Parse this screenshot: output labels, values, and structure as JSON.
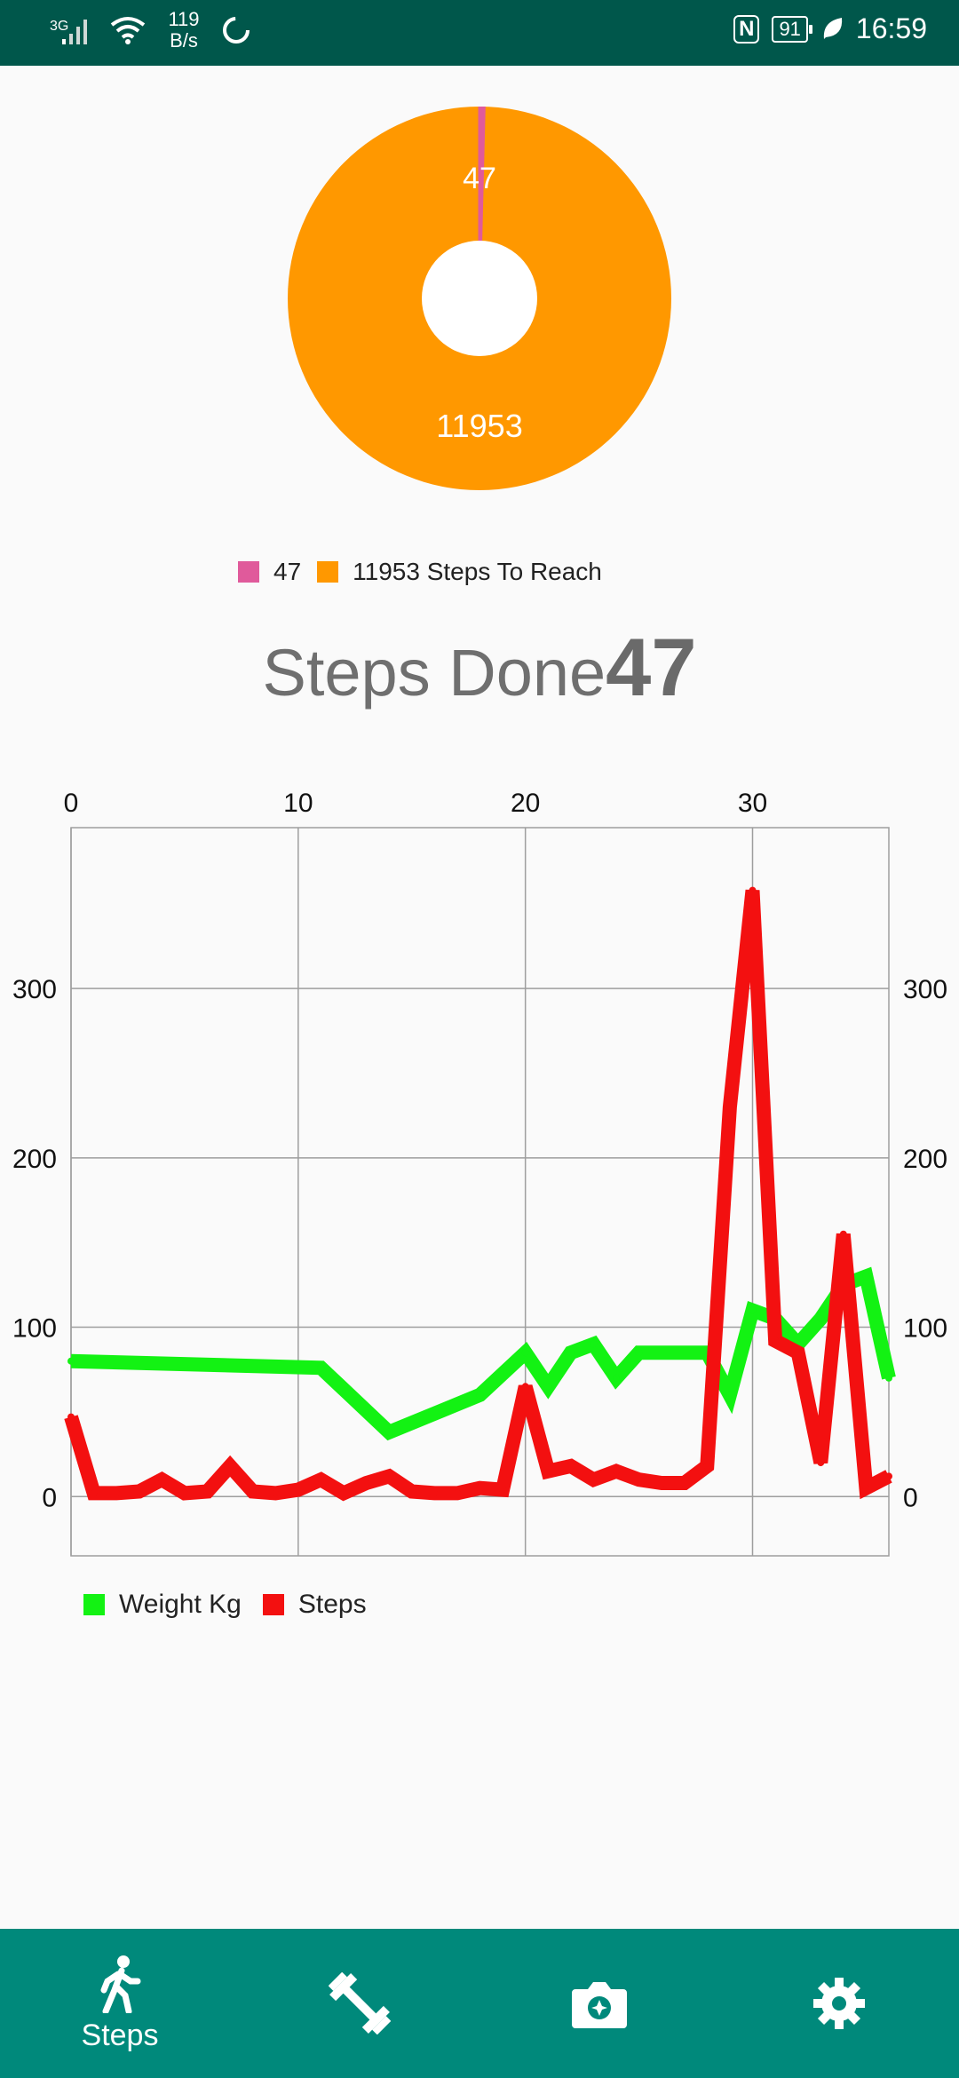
{
  "status_bar": {
    "network_type": "3G",
    "net_speed_value": "119",
    "net_speed_unit": "B/s",
    "nfc": "N",
    "battery": "91",
    "time": "16:59"
  },
  "colors": {
    "steps_done_slice": "#e05a9b",
    "steps_to_reach_slice": "#ff9800",
    "weight_line": "#13f213",
    "steps_line": "#f31010",
    "nav_bg": "#00897b",
    "status_bg": "#00574b"
  },
  "donut": {
    "done_label": "47",
    "remaining_label": "11953",
    "legend": [
      {
        "label": "47"
      },
      {
        "label": "11953  Steps To Reach"
      }
    ]
  },
  "summary": {
    "prefix": "Steps Done",
    "value": "47"
  },
  "chart_data": {
    "type": "line",
    "xlim": [
      0,
      36
    ],
    "ylim": [
      -35,
      395
    ],
    "x_ticks": [
      0,
      10,
      20,
      30
    ],
    "y_ticks": [
      0,
      100,
      200,
      300
    ],
    "grid": true,
    "legend_placement": "bottom-left",
    "series": [
      {
        "name": "Weight Kg",
        "color": "#13f213",
        "points": [
          [
            0,
            80
          ],
          [
            11,
            76
          ],
          [
            14,
            38
          ],
          [
            18,
            60
          ],
          [
            20,
            85
          ],
          [
            21,
            65
          ],
          [
            22,
            85
          ],
          [
            23,
            90
          ],
          [
            24,
            70
          ],
          [
            25,
            85
          ],
          [
            28,
            85
          ],
          [
            29,
            60
          ],
          [
            30,
            110
          ],
          [
            31,
            105
          ],
          [
            32,
            90
          ],
          [
            33,
            105
          ],
          [
            34,
            125
          ],
          [
            35,
            130
          ],
          [
            36,
            70
          ]
        ]
      },
      {
        "name": "Steps",
        "color": "#f31010",
        "points": [
          [
            0,
            47
          ],
          [
            1,
            2
          ],
          [
            2,
            2
          ],
          [
            3,
            3
          ],
          [
            4,
            10
          ],
          [
            5,
            2
          ],
          [
            6,
            3
          ],
          [
            7,
            18
          ],
          [
            8,
            3
          ],
          [
            9,
            2
          ],
          [
            10,
            4
          ],
          [
            11,
            10
          ],
          [
            12,
            2
          ],
          [
            13,
            8
          ],
          [
            14,
            12
          ],
          [
            15,
            3
          ],
          [
            16,
            2
          ],
          [
            17,
            2
          ],
          [
            18,
            5
          ],
          [
            19,
            4
          ],
          [
            20,
            65
          ],
          [
            21,
            15
          ],
          [
            22,
            18
          ],
          [
            23,
            10
          ],
          [
            24,
            15
          ],
          [
            25,
            10
          ],
          [
            26,
            8
          ],
          [
            27,
            8
          ],
          [
            28,
            18
          ],
          [
            29,
            230
          ],
          [
            30,
            358
          ],
          [
            31,
            92
          ],
          [
            32,
            85
          ],
          [
            33,
            20
          ],
          [
            34,
            155
          ],
          [
            35,
            5
          ],
          [
            36,
            12
          ]
        ]
      }
    ]
  },
  "chart_legend": [
    {
      "label": "Weight Kg"
    },
    {
      "label": "Steps"
    }
  ],
  "nav": {
    "items": [
      {
        "label": "Steps",
        "icon": "walk-icon"
      },
      {
        "icon": "dumbbell-icon"
      },
      {
        "icon": "camera-icon"
      },
      {
        "icon": "gear-icon"
      }
    ]
  }
}
